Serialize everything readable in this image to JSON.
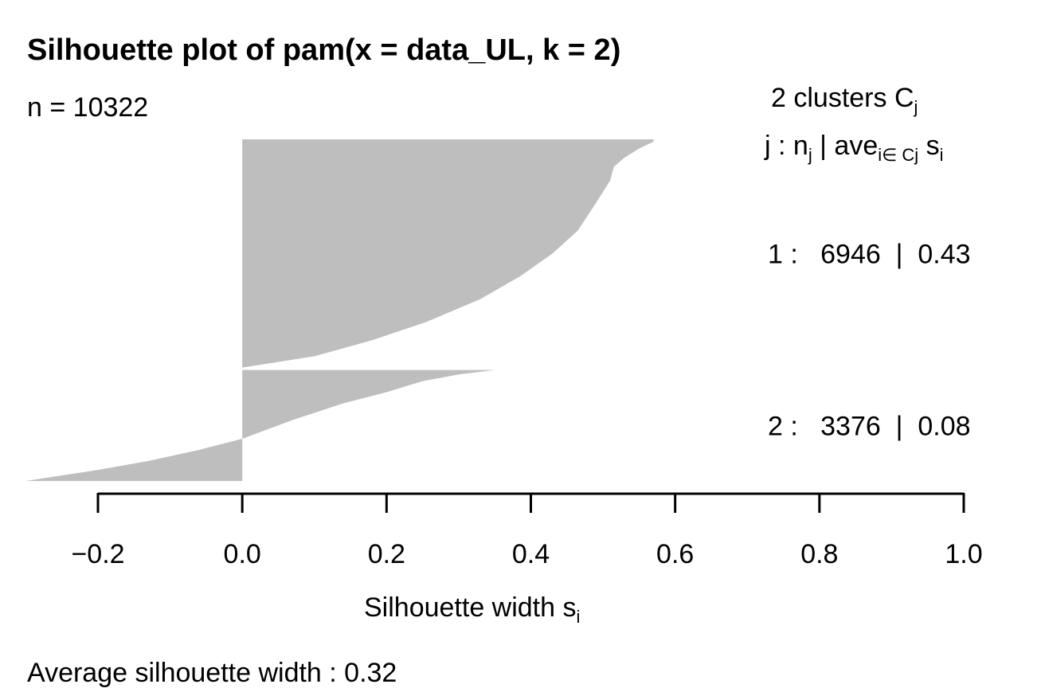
{
  "chart_data": {
    "type": "area",
    "title": "Silhouette plot of pam(x = data_UL, k = 2)",
    "n_label": "n = 10322",
    "xlabel_main": "Silhouette width s",
    "xlabel_sub": "i",
    "xlim": [
      -0.2,
      1.0
    ],
    "xticks": [
      -0.2,
      0.0,
      0.2,
      0.4,
      0.6,
      0.8,
      1.0
    ],
    "xtick_labels": [
      "−0.2",
      "0.0",
      "0.2",
      "0.4",
      "0.6",
      "0.8",
      "1.0"
    ],
    "legend_header": {
      "line1_prefix": "2  clusters  C",
      "line1_sub": "j",
      "line2_a": "j :  n",
      "line2_a_sub": "j",
      "line2_b": " | ave",
      "line2_b_sub": "i∈ Cj",
      "line2_c": "  s",
      "line2_c_sub": "i"
    },
    "clusters": [
      {
        "label": "1 :   6946  |  0.43",
        "n": 6946,
        "avg_width": 0.43,
        "profile": [
          [
            0,
            0.57
          ],
          [
            0.01,
            0.57
          ],
          [
            0.04,
            0.55
          ],
          [
            0.08,
            0.53
          ],
          [
            0.12,
            0.515
          ],
          [
            0.18,
            0.51
          ],
          [
            0.28,
            0.49
          ],
          [
            0.4,
            0.465
          ],
          [
            0.5,
            0.43
          ],
          [
            0.6,
            0.385
          ],
          [
            0.7,
            0.33
          ],
          [
            0.8,
            0.255
          ],
          [
            0.88,
            0.18
          ],
          [
            0.95,
            0.1
          ],
          [
            1.0,
            0.0
          ]
        ]
      },
      {
        "label": "2 :   3376  |  0.08",
        "n": 3376,
        "avg_width": 0.08,
        "profile": [
          [
            0,
            0.35
          ],
          [
            0.04,
            0.3
          ],
          [
            0.1,
            0.25
          ],
          [
            0.2,
            0.2
          ],
          [
            0.3,
            0.14
          ],
          [
            0.45,
            0.07
          ],
          [
            0.62,
            0.0
          ],
          [
            0.72,
            -0.06
          ],
          [
            0.82,
            -0.13
          ],
          [
            0.9,
            -0.2
          ],
          [
            0.96,
            -0.26
          ],
          [
            1.0,
            -0.3
          ]
        ]
      }
    ],
    "color": "#bebebe",
    "footer": "Average silhouette width :  0.32"
  }
}
